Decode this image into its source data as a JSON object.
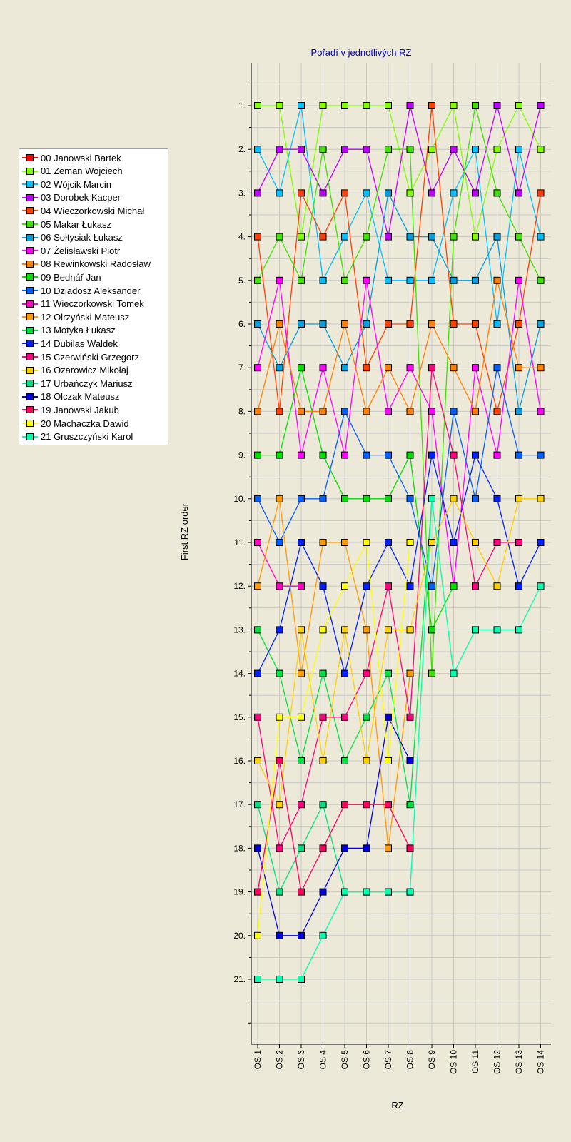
{
  "chart_data": {
    "type": "line",
    "title": "Pořadí v jednotlivých RZ",
    "xlabel": "RZ",
    "ylabel": "First RZ order",
    "y_inverted": true,
    "ylim": [
      0,
      22
    ],
    "grid": true,
    "legend_position": "left",
    "categories": [
      "OS 1",
      "OS 2",
      "OS 3",
      "OS 4",
      "OS 5",
      "OS 6",
      "OS 7",
      "OS 8",
      "OS 9",
      "OS 10",
      "OS 11",
      "OS 12",
      "OS 13",
      "OS 14"
    ],
    "y_ticks": [
      "1.",
      "2.",
      "3.",
      "4.",
      "5.",
      "6.",
      "7.",
      "8.",
      "9.",
      "10.",
      "11.",
      "12.",
      "13.",
      "14.",
      "15.",
      "16.",
      "17.",
      "18.",
      "19.",
      "20.",
      "21."
    ],
    "series": [
      {
        "name": "00 Janowski Bartek",
        "color": "#ff0000",
        "values": [
          null,
          null,
          null,
          null,
          null,
          null,
          null,
          null,
          null,
          null,
          null,
          null,
          null,
          null
        ]
      },
      {
        "name": "01 Zeman Wojciech",
        "color": "#80ff00",
        "values": [
          1,
          1,
          4,
          1,
          1,
          1,
          1,
          3,
          2,
          1,
          4,
          2,
          1,
          2
        ]
      },
      {
        "name": "02 Wójcik Marcin",
        "color": "#00c0ff",
        "values": [
          2,
          3,
          1,
          5,
          4,
          3,
          5,
          5,
          5,
          3,
          2,
          6,
          2,
          4
        ]
      },
      {
        "name": "03 Dorobek Kacper",
        "color": "#c000ff",
        "values": [
          3,
          2,
          2,
          3,
          2,
          2,
          4,
          1,
          3,
          2,
          3,
          1,
          3,
          1
        ]
      },
      {
        "name": "04 Wieczorkowski Michał",
        "color": "#ff4000",
        "values": [
          4,
          8,
          3,
          4,
          3,
          7,
          6,
          6,
          1,
          6,
          6,
          8,
          6,
          3
        ]
      },
      {
        "name": "05 Makar Łukasz",
        "color": "#40e000",
        "values": [
          5,
          4,
          5,
          2,
          5,
          4,
          2,
          2,
          14,
          4,
          1,
          3,
          4,
          5
        ]
      },
      {
        "name": "06 Sołtysiak Łukasz",
        "color": "#00a0e0",
        "values": [
          6,
          7,
          6,
          6,
          7,
          6,
          3,
          4,
          4,
          5,
          5,
          4,
          8,
          6
        ]
      },
      {
        "name": "07 Żelisławski Piotr",
        "color": "#ff00ff",
        "values": [
          7,
          5,
          9,
          7,
          9,
          5,
          8,
          7,
          8,
          12,
          7,
          9,
          5,
          8
        ]
      },
      {
        "name": "08 Rewinkowski Radosław",
        "color": "#ff8000",
        "values": [
          8,
          6,
          8,
          8,
          6,
          8,
          7,
          8,
          6,
          7,
          8,
          5,
          7,
          7
        ]
      },
      {
        "name": "09 Bednář Jan",
        "color": "#00e000",
        "values": [
          9,
          9,
          7,
          9,
          10,
          10,
          10,
          9,
          13,
          12,
          null,
          null,
          null,
          null
        ]
      },
      {
        "name": "10 Dziadosz Aleksander",
        "color": "#0060ff",
        "values": [
          10,
          11,
          10,
          10,
          8,
          9,
          9,
          10,
          12,
          8,
          10,
          7,
          9,
          9
        ]
      },
      {
        "name": "11 Wieczorkowski Tomek",
        "color": "#ff00c0",
        "values": [
          11,
          12,
          12,
          null,
          null,
          null,
          null,
          null,
          null,
          null,
          null,
          null,
          null,
          null
        ]
      },
      {
        "name": "12 Olrzyński Mateusz",
        "color": "#ff9900",
        "values": [
          12,
          10,
          14,
          11,
          11,
          13,
          18,
          14,
          null,
          null,
          null,
          null,
          null,
          null
        ]
      },
      {
        "name": "13 Motyka Łukasz",
        "color": "#00e040",
        "values": [
          13,
          14,
          16,
          14,
          16,
          15,
          14,
          17,
          10,
          null,
          null,
          null,
          null,
          null
        ]
      },
      {
        "name": "14 Dubilas Waldek",
        "color": "#0020ff",
        "values": [
          14,
          13,
          11,
          12,
          14,
          12,
          11,
          12,
          9,
          11,
          9,
          10,
          12,
          11
        ]
      },
      {
        "name": "15 Czerwiński Grzegorz",
        "color": "#ff0080",
        "values": [
          15,
          18,
          17,
          15,
          15,
          14,
          12,
          15,
          7,
          9,
          12,
          11,
          11,
          null
        ]
      },
      {
        "name": "16 Ozarowicz Mikołaj",
        "color": "#ffd000",
        "values": [
          16,
          17,
          13,
          16,
          13,
          16,
          13,
          13,
          11,
          10,
          11,
          12,
          10,
          10
        ]
      },
      {
        "name": "17 Urbańczyk Mariusz",
        "color": "#00e080",
        "values": [
          17,
          19,
          18,
          17,
          19,
          19,
          19,
          19,
          null,
          null,
          null,
          null,
          null,
          null
        ]
      },
      {
        "name": "18 Olczak Mateusz",
        "color": "#0000e0",
        "values": [
          18,
          20,
          20,
          19,
          18,
          18,
          15,
          16,
          null,
          null,
          null,
          null,
          null,
          null
        ]
      },
      {
        "name": "19 Janowski Jakub",
        "color": "#ff0060",
        "values": [
          19,
          16,
          19,
          18,
          17,
          17,
          17,
          18,
          null,
          null,
          null,
          null,
          null,
          null
        ]
      },
      {
        "name": "20 Machaczka Dawid",
        "color": "#ffff00",
        "values": [
          20,
          15,
          15,
          13,
          12,
          11,
          16,
          11,
          null,
          null,
          null,
          null,
          null,
          null
        ]
      },
      {
        "name": "21 Gruszczyński Karol",
        "color": "#00ffb0",
        "values": [
          21,
          21,
          21,
          20,
          19,
          19,
          19,
          19,
          10,
          14,
          13,
          13,
          13,
          12
        ]
      }
    ]
  }
}
